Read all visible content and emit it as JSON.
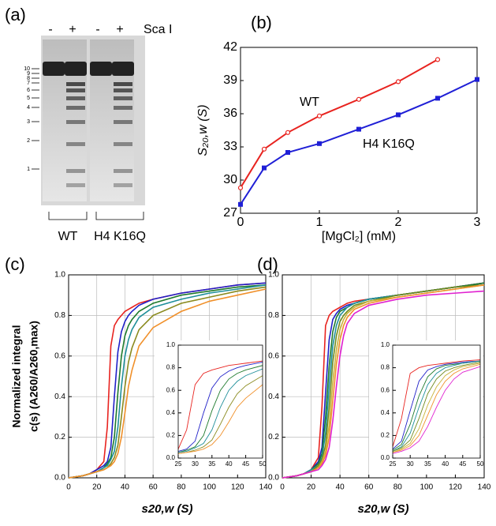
{
  "chart_data": [
    {
      "type": "gel",
      "label": "(a)",
      "lane_labels": [
        "-",
        "+",
        "-",
        "+"
      ],
      "enzyme": "Sca I",
      "marker_labels": [
        "10",
        "9",
        "8",
        "7",
        "6",
        "5",
        "4",
        "3",
        "2",
        "1"
      ],
      "group_labels": [
        "WT",
        "H4 K16Q"
      ]
    },
    {
      "type": "line",
      "label": "(b)",
      "xlabel": "[MgCl₂] (mM)",
      "ylabel": "S₂₀,w (S)",
      "xlim": [
        0,
        3
      ],
      "xticks": [
        0,
        1,
        2,
        3
      ],
      "ylim": [
        27,
        42
      ],
      "yticks": [
        27,
        30,
        33,
        36,
        39,
        42
      ],
      "annotations": [
        "WT",
        "H4 K16Q"
      ],
      "series": [
        {
          "color": "#e8231f",
          "marker": "circle",
          "x": [
            0,
            0.3,
            0.6,
            1,
            1.5,
            2,
            2.5
          ],
          "values": [
            29.3,
            32.8,
            34.3,
            35.8,
            37.3,
            38.9,
            40.9
          ]
        },
        {
          "color": "#1f1fd6",
          "marker": "square",
          "x": [
            0,
            0.3,
            0.6,
            1,
            1.5,
            2,
            2.5,
            3
          ],
          "values": [
            27.8,
            31.1,
            32.5,
            33.3,
            34.6,
            35.9,
            37.4,
            39.1
          ]
        }
      ]
    },
    {
      "type": "line",
      "label": "(c)",
      "xlabel": "s20,w (S)",
      "ylabel": [
        "Normalized integral",
        "c(s) (A260/A260,max)"
      ],
      "xlim": [
        0,
        140
      ],
      "xticks": [
        0,
        20,
        40,
        60,
        80,
        100,
        120,
        140
      ],
      "ylim": [
        0,
        1
      ],
      "yticks": [
        {
          "value": 0,
          "label": "0.0"
        },
        0.2,
        0.4,
        0.6,
        0.8,
        {
          "value": 1,
          "label": "1.0"
        }
      ],
      "grid": true,
      "inset": {
        "xlim": [
          25,
          50
        ],
        "xticks": [
          25,
          30,
          35,
          40,
          45,
          50
        ],
        "ylim": [
          0,
          1
        ],
        "yticks": [
          {
            "value": 0,
            "label": "0.0"
          },
          0.2,
          0.4,
          0.6,
          0.8,
          {
            "value": 1,
            "label": "1.0"
          }
        ]
      },
      "x": [
        0,
        10,
        15,
        20,
        25,
        27.5,
        30,
        32.5,
        35,
        37.5,
        40,
        42.5,
        45,
        50,
        60,
        80,
        100,
        120,
        140
      ],
      "series": [
        {
          "color": "#e8231f",
          "values": [
            0,
            0.01,
            0.02,
            0.04,
            0.08,
            0.25,
            0.65,
            0.75,
            0.78,
            0.8,
            0.82,
            0.83,
            0.84,
            0.86,
            0.88,
            0.91,
            0.93,
            0.95,
            0.96
          ]
        },
        {
          "color": "#2020c8",
          "values": [
            0,
            0.01,
            0.02,
            0.04,
            0.06,
            0.08,
            0.15,
            0.4,
            0.62,
            0.72,
            0.77,
            0.8,
            0.82,
            0.85,
            0.88,
            0.91,
            0.93,
            0.95,
            0.96
          ]
        },
        {
          "color": "#1e7a2c",
          "values": [
            0,
            0.01,
            0.02,
            0.03,
            0.05,
            0.07,
            0.1,
            0.2,
            0.42,
            0.6,
            0.7,
            0.75,
            0.78,
            0.82,
            0.86,
            0.9,
            0.92,
            0.94,
            0.95
          ]
        },
        {
          "color": "#1f8f9a",
          "values": [
            0,
            0.01,
            0.02,
            0.03,
            0.05,
            0.06,
            0.09,
            0.13,
            0.25,
            0.45,
            0.6,
            0.68,
            0.73,
            0.79,
            0.84,
            0.88,
            0.91,
            0.93,
            0.95
          ]
        },
        {
          "color": "#8a8a1e",
          "values": [
            0,
            0.01,
            0.02,
            0.03,
            0.04,
            0.05,
            0.07,
            0.1,
            0.16,
            0.3,
            0.45,
            0.57,
            0.64,
            0.73,
            0.8,
            0.86,
            0.89,
            0.92,
            0.94
          ]
        },
        {
          "color": "#f0902a",
          "values": [
            0,
            0.01,
            0.02,
            0.03,
            0.04,
            0.05,
            0.06,
            0.08,
            0.12,
            0.2,
            0.32,
            0.45,
            0.53,
            0.65,
            0.74,
            0.82,
            0.87,
            0.9,
            0.93
          ]
        }
      ]
    },
    {
      "type": "line",
      "label": "(d)",
      "xlabel": "s20,w (S)",
      "xlim": [
        0,
        140
      ],
      "xticks": [
        0,
        20,
        40,
        60,
        80,
        100,
        120,
        140
      ],
      "ylim": [
        0,
        1
      ],
      "yticks": [
        {
          "value": 0,
          "label": "0.0"
        },
        0.2,
        0.4,
        0.6,
        0.8,
        {
          "value": 1,
          "label": "1.0"
        }
      ],
      "grid": true,
      "inset": {
        "xlim": [
          25,
          50
        ],
        "xticks": [
          25,
          30,
          35,
          40,
          45,
          50
        ],
        "ylim": [
          0,
          1
        ],
        "yticks": [
          {
            "value": 0,
            "label": "0.0"
          },
          0.2,
          0.4,
          0.6,
          0.8,
          {
            "value": 1,
            "label": "1.0"
          }
        ]
      },
      "x": [
        0,
        10,
        15,
        20,
        25,
        27.5,
        30,
        32.5,
        35,
        37.5,
        40,
        42.5,
        45,
        50,
        60,
        80,
        100,
        120,
        140
      ],
      "series": [
        {
          "color": "#e8231f",
          "values": [
            0,
            0.01,
            0.02,
            0.04,
            0.1,
            0.35,
            0.75,
            0.8,
            0.82,
            0.83,
            0.84,
            0.85,
            0.86,
            0.87,
            0.88,
            0.9,
            0.92,
            0.94,
            0.96
          ]
        },
        {
          "color": "#2020c8",
          "values": [
            0,
            0.01,
            0.02,
            0.04,
            0.08,
            0.15,
            0.42,
            0.68,
            0.78,
            0.81,
            0.83,
            0.84,
            0.85,
            0.86,
            0.88,
            0.9,
            0.92,
            0.94,
            0.96
          ]
        },
        {
          "color": "#1e7a2c",
          "values": [
            0,
            0.01,
            0.02,
            0.04,
            0.07,
            0.12,
            0.3,
            0.55,
            0.72,
            0.79,
            0.82,
            0.83,
            0.84,
            0.86,
            0.88,
            0.9,
            0.92,
            0.94,
            0.96
          ]
        },
        {
          "color": "#1f8f9a",
          "values": [
            0,
            0.01,
            0.02,
            0.04,
            0.06,
            0.1,
            0.22,
            0.45,
            0.65,
            0.75,
            0.8,
            0.82,
            0.84,
            0.86,
            0.88,
            0.9,
            0.92,
            0.94,
            0.95
          ]
        },
        {
          "color": "#6f8a1e",
          "values": [
            0,
            0.01,
            0.02,
            0.03,
            0.06,
            0.09,
            0.16,
            0.35,
            0.57,
            0.7,
            0.77,
            0.8,
            0.82,
            0.85,
            0.87,
            0.9,
            0.92,
            0.94,
            0.95
          ]
        },
        {
          "color": "#c8b43a",
          "values": [
            0,
            0.01,
            0.02,
            0.03,
            0.05,
            0.08,
            0.13,
            0.26,
            0.47,
            0.63,
            0.73,
            0.78,
            0.81,
            0.84,
            0.87,
            0.89,
            0.91,
            0.93,
            0.95
          ]
        },
        {
          "color": "#f0902a",
          "values": [
            0,
            0.01,
            0.02,
            0.03,
            0.05,
            0.07,
            0.11,
            0.2,
            0.38,
            0.56,
            0.68,
            0.75,
            0.79,
            0.83,
            0.86,
            0.89,
            0.91,
            0.93,
            0.95
          ]
        },
        {
          "color": "#e020d0",
          "values": [
            0,
            0.01,
            0.02,
            0.03,
            0.04,
            0.06,
            0.09,
            0.15,
            0.28,
            0.45,
            0.6,
            0.7,
            0.76,
            0.81,
            0.85,
            0.88,
            0.9,
            0.91,
            0.92
          ]
        }
      ]
    }
  ]
}
